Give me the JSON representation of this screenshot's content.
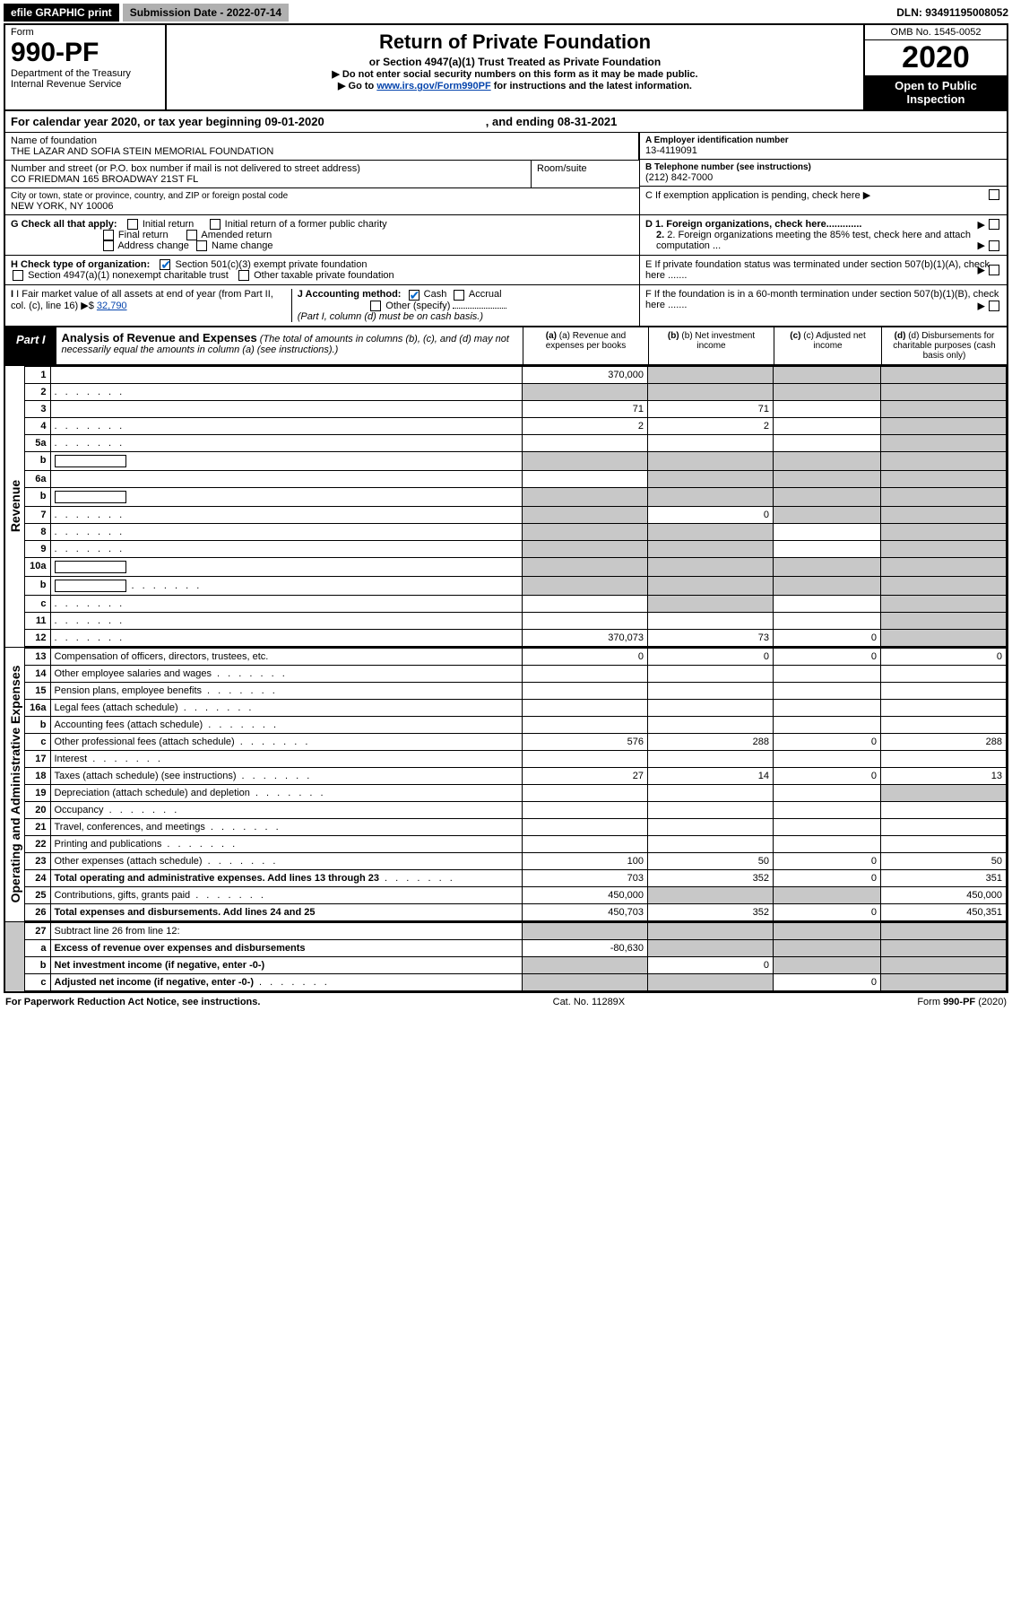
{
  "top": {
    "efile": "efile GRAPHIC print",
    "submission": "Submission Date - 2022-07-14",
    "dln": "DLN: 93491195008052"
  },
  "header": {
    "form_label": "Form",
    "form_num": "990-PF",
    "dept": "Department of the Treasury",
    "irs": "Internal Revenue Service",
    "title": "Return of Private Foundation",
    "subtitle": "or Section 4947(a)(1) Trust Treated as Private Foundation",
    "note1": "▶ Do not enter social security numbers on this form as it may be made public.",
    "note2_pre": "▶ Go to ",
    "note2_link": "www.irs.gov/Form990PF",
    "note2_post": " for instructions and the latest information.",
    "omb": "OMB No. 1545-0052",
    "year": "2020",
    "open": "Open to Public Inspection"
  },
  "cal": {
    "text": "For calendar year 2020, or tax year beginning 09-01-2020",
    "end": ", and ending 08-31-2021"
  },
  "info": {
    "name_lbl": "Name of foundation",
    "name": "THE LAZAR AND SOFIA STEIN MEMORIAL FOUNDATION",
    "addr_lbl": "Number and street (or P.O. box number if mail is not delivered to street address)",
    "addr": "CO FRIEDMAN 165 BROADWAY 21ST FL",
    "room_lbl": "Room/suite",
    "city_lbl": "City or town, state or province, country, and ZIP or foreign postal code",
    "city": "NEW YORK, NY  10006",
    "ein_lbl": "A Employer identification number",
    "ein": "13-4119091",
    "phone_lbl": "B Telephone number (see instructions)",
    "phone": "(212) 842-7000",
    "c": "C If exemption application is pending, check here",
    "d1": "D 1. Foreign organizations, check here.............",
    "d2": "2. Foreign organizations meeting the 85% test, check here and attach computation ...",
    "e": "E  If private foundation status was terminated under section 507(b)(1)(A), check here .......",
    "f": "F  If the foundation is in a 60-month termination under section 507(b)(1)(B), check here .......",
    "g_lbl": "G Check all that apply:",
    "g_opts": [
      "Initial return",
      "Final return",
      "Address change",
      "Initial return of a former public charity",
      "Amended return",
      "Name change"
    ],
    "h_lbl": "H Check type of organization:",
    "h1": "Section 501(c)(3) exempt private foundation",
    "h2": "Section 4947(a)(1) nonexempt charitable trust",
    "h3": "Other taxable private foundation",
    "i_lbl": "I Fair market value of all assets at end of year (from Part II, col. (c), line 16)",
    "i_val": "32,790",
    "j_lbl": "J Accounting method:",
    "j_cash": "Cash",
    "j_accr": "Accrual",
    "j_other": "Other (specify)",
    "j_note": "(Part I, column (d) must be on cash basis.)"
  },
  "part1": {
    "tab": "Part I",
    "title": "Analysis of Revenue and Expenses",
    "note": " (The total of amounts in columns (b), (c), and (d) may not necessarily equal the amounts in column (a) (see instructions).)",
    "col_a": "(a) Revenue and expenses per books",
    "col_b": "(b) Net investment income",
    "col_c": "(c) Adjusted net income",
    "col_d": "(d) Disbursements for charitable purposes (cash basis only)",
    "side_rev": "Revenue",
    "side_exp": "Operating and Administrative Expenses"
  },
  "rows": [
    {
      "n": "1",
      "d": "",
      "a": "370,000",
      "b": "",
      "c": "",
      "shade_b": true,
      "shade_c": true,
      "shade_d": true
    },
    {
      "n": "2",
      "d": "",
      "dots": true,
      "a": "",
      "b": "",
      "c": "",
      "shade_a": true,
      "shade_b": true,
      "shade_c": true,
      "shade_d": true
    },
    {
      "n": "3",
      "d": "",
      "a": "71",
      "b": "71",
      "c": "",
      "shade_d": true
    },
    {
      "n": "4",
      "d": "",
      "dots": true,
      "a": "2",
      "b": "2",
      "c": "",
      "shade_d": true
    },
    {
      "n": "5a",
      "d": "",
      "dots": true,
      "a": "",
      "b": "",
      "c": "",
      "shade_d": true
    },
    {
      "n": "b",
      "d": "",
      "box": true,
      "a": "",
      "b": "",
      "c": "",
      "shade_a": true,
      "shade_b": true,
      "shade_c": true,
      "shade_d": true
    },
    {
      "n": "6a",
      "d": "",
      "a": "",
      "b": "",
      "c": "",
      "shade_b": true,
      "shade_c": true,
      "shade_d": true
    },
    {
      "n": "b",
      "d": "",
      "box": true,
      "a": "",
      "b": "",
      "c": "",
      "shade_a": true,
      "shade_b": true,
      "shade_c": true,
      "shade_d": true
    },
    {
      "n": "7",
      "d": "",
      "dots": true,
      "a": "",
      "b": "0",
      "c": "",
      "shade_a": true,
      "shade_c": true,
      "shade_d": true
    },
    {
      "n": "8",
      "d": "",
      "dots": true,
      "a": "",
      "b": "",
      "c": "",
      "shade_a": true,
      "shade_b": true,
      "shade_d": true
    },
    {
      "n": "9",
      "d": "",
      "dots": true,
      "a": "",
      "b": "",
      "c": "",
      "shade_a": true,
      "shade_b": true,
      "shade_d": true
    },
    {
      "n": "10a",
      "d": "",
      "box": true,
      "a": "",
      "b": "",
      "c": "",
      "shade_a": true,
      "shade_b": true,
      "shade_c": true,
      "shade_d": true
    },
    {
      "n": "b",
      "d": "",
      "dots": true,
      "box": true,
      "a": "",
      "b": "",
      "c": "",
      "shade_a": true,
      "shade_b": true,
      "shade_c": true,
      "shade_d": true
    },
    {
      "n": "c",
      "d": "",
      "dots": true,
      "a": "",
      "b": "",
      "c": "",
      "shade_b": true,
      "shade_d": true
    },
    {
      "n": "11",
      "d": "",
      "dots": true,
      "a": "",
      "b": "",
      "c": "",
      "shade_d": true
    },
    {
      "n": "12",
      "d": "",
      "dots": true,
      "bold": true,
      "a": "370,073",
      "b": "73",
      "c": "0",
      "shade_d": true
    }
  ],
  "exp_rows": [
    {
      "n": "13",
      "d": "0",
      "a": "0",
      "b": "0",
      "c": "0"
    },
    {
      "n": "14",
      "d": "",
      "dots": true,
      "a": "",
      "b": "",
      "c": ""
    },
    {
      "n": "15",
      "d": "",
      "dots": true,
      "a": "",
      "b": "",
      "c": ""
    },
    {
      "n": "16a",
      "d": "",
      "dots": true,
      "a": "",
      "b": "",
      "c": ""
    },
    {
      "n": "b",
      "d": "",
      "dots": true,
      "a": "",
      "b": "",
      "c": ""
    },
    {
      "n": "c",
      "d": "288",
      "dots": true,
      "a": "576",
      "b": "288",
      "c": "0"
    },
    {
      "n": "17",
      "d": "",
      "dots": true,
      "a": "",
      "b": "",
      "c": ""
    },
    {
      "n": "18",
      "d": "13",
      "dots": true,
      "a": "27",
      "b": "14",
      "c": "0"
    },
    {
      "n": "19",
      "d": "",
      "dots": true,
      "a": "",
      "b": "",
      "c": "",
      "shade_d": true
    },
    {
      "n": "20",
      "d": "",
      "dots": true,
      "a": "",
      "b": "",
      "c": ""
    },
    {
      "n": "21",
      "d": "",
      "dots": true,
      "a": "",
      "b": "",
      "c": ""
    },
    {
      "n": "22",
      "d": "",
      "dots": true,
      "a": "",
      "b": "",
      "c": ""
    },
    {
      "n": "23",
      "d": "50",
      "dots": true,
      "a": "100",
      "b": "50",
      "c": "0"
    },
    {
      "n": "24",
      "d": "351",
      "dots": true,
      "bold": true,
      "a": "703",
      "b": "352",
      "c": "0"
    },
    {
      "n": "25",
      "d": "450,000",
      "dots": true,
      "a": "450,000",
      "b": "",
      "c": "",
      "shade_b": true,
      "shade_c": true
    },
    {
      "n": "26",
      "d": "450,351",
      "bold": true,
      "a": "450,703",
      "b": "352",
      "c": "0"
    }
  ],
  "net_rows": [
    {
      "n": "27",
      "d": "",
      "a": "",
      "b": "",
      "c": "",
      "shade_a": true,
      "shade_b": true,
      "shade_c": true,
      "shade_d": true
    },
    {
      "n": "a",
      "d": "",
      "bold": true,
      "a": "-80,630",
      "b": "",
      "c": "",
      "shade_b": true,
      "shade_c": true,
      "shade_d": true
    },
    {
      "n": "b",
      "d": "",
      "bold": true,
      "a": "",
      "b": "0",
      "c": "",
      "shade_a": true,
      "shade_c": true,
      "shade_d": true
    },
    {
      "n": "c",
      "d": "",
      "dots": true,
      "bold": true,
      "a": "",
      "b": "",
      "c": "0",
      "shade_a": true,
      "shade_b": true,
      "shade_d": true
    }
  ],
  "footer": {
    "left": "For Paperwork Reduction Act Notice, see instructions.",
    "mid": "Cat. No. 11289X",
    "right": "Form 990-PF (2020)"
  }
}
